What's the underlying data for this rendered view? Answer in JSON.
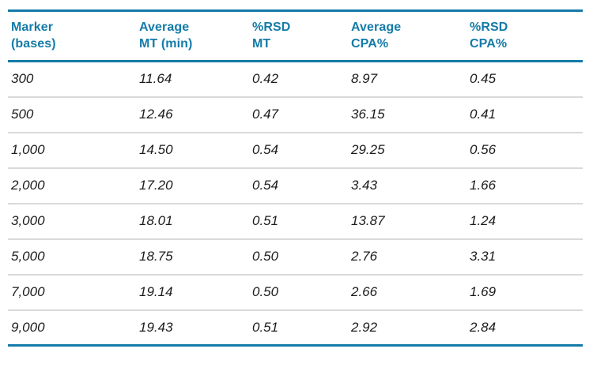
{
  "table": {
    "columns": [
      "Marker\n(bases)",
      "Average\nMT (min)",
      "%RSD\nMT",
      "Average\nCPA%",
      "%RSD\nCPA%"
    ],
    "rows": [
      [
        "300",
        "11.64",
        "0.42",
        "8.97",
        "0.45"
      ],
      [
        "500",
        "12.46",
        "0.47",
        "36.15",
        "0.41"
      ],
      [
        "1,000",
        "14.50",
        "0.54",
        "29.25",
        "0.56"
      ],
      [
        "2,000",
        "17.20",
        "0.54",
        "3.43",
        "1.66"
      ],
      [
        "3,000",
        "18.01",
        "0.51",
        "13.87",
        "1.24"
      ],
      [
        "5,000",
        "18.75",
        "0.50",
        "2.76",
        "3.31"
      ],
      [
        "7,000",
        "19.14",
        "0.50",
        "2.66",
        "1.69"
      ],
      [
        "9,000",
        "19.43",
        "0.51",
        "2.92",
        "2.84"
      ]
    ]
  },
  "colors": {
    "accent": "#147ba8",
    "separator": "#d9d9d9",
    "body_text": "#1c1c1c",
    "background": "#ffffff"
  },
  "chart_data": {
    "type": "table",
    "title": "",
    "columns": [
      "Marker (bases)",
      "Average MT (min)",
      "%RSD MT",
      "Average CPA%",
      "%RSD CPA%"
    ],
    "rows": [
      [
        "300",
        11.64,
        0.42,
        8.97,
        0.45
      ],
      [
        "500",
        12.46,
        0.47,
        36.15,
        0.41
      ],
      [
        "1,000",
        14.5,
        0.54,
        29.25,
        0.56
      ],
      [
        "2,000",
        17.2,
        0.54,
        3.43,
        1.66
      ],
      [
        "3,000",
        18.01,
        0.51,
        13.87,
        1.24
      ],
      [
        "5,000",
        18.75,
        0.5,
        2.76,
        3.31
      ],
      [
        "7,000",
        19.14,
        0.5,
        2.66,
        1.69
      ],
      [
        "9,000",
        19.43,
        0.51,
        2.92,
        2.84
      ]
    ],
    "layout_hints": {
      "header_text_color": "#147ba8",
      "rule_color": "#147ba8",
      "row_separator_color": "#d9d9d9",
      "body_font_style": "italic",
      "grid": "horizontal-only"
    }
  }
}
